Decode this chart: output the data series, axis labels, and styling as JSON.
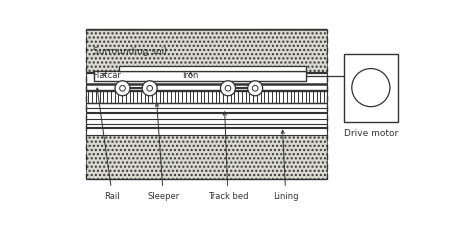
{
  "fig_width": 4.74,
  "fig_height": 2.28,
  "dpi": 100,
  "lc": "#333333",
  "surrounding_soil_text": "Surrounding soil",
  "flatcar_text": "Flatcar",
  "iron_text": "Iron",
  "drive_motor_text": "Drive motor",
  "rail_text": "Rail",
  "sleeper_text": "Sleeper",
  "trackbed_text": "Track bed",
  "lining_text": "Lining",
  "soil_hatch_color": "#bbbbbb",
  "soil_face_color": "#d8d8d0",
  "lining_face_color": "#d8d8d0",
  "white": "#ffffff"
}
